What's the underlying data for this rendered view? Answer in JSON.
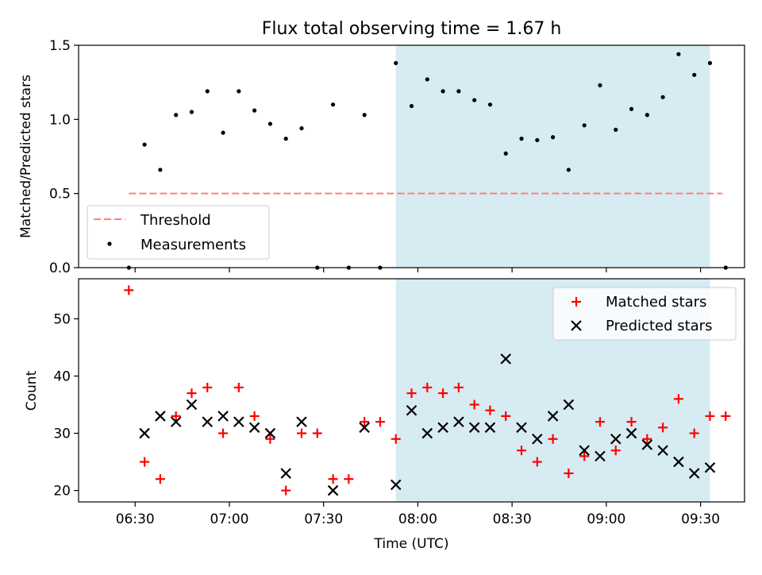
{
  "title": "Flux total observing time = 1.67 h",
  "colors": {
    "threshold": "#ff7f7f",
    "matched": "#ff0000",
    "predicted": "#000000",
    "shade": "#add8e6",
    "measurement": "#000000"
  },
  "x_axis": {
    "label": "Time (UTC)",
    "min_minutes_after_0600": 12,
    "max_minutes_after_0600": 224,
    "ticks": [
      {
        "t": "06:30",
        "label": "06:30"
      },
      {
        "t": "07:00",
        "label": "07:00"
      },
      {
        "t": "07:30",
        "label": "07:30"
      },
      {
        "t": "08:00",
        "label": "08:00"
      },
      {
        "t": "08:30",
        "label": "08:30"
      },
      {
        "t": "09:00",
        "label": "09:00"
      },
      {
        "t": "09:30",
        "label": "09:30"
      }
    ]
  },
  "chart_data": [
    {
      "type": "scatter",
      "title": "Flux total observing time = 1.67 h",
      "ylabel": "Matched/Predicted stars",
      "ylim": [
        0,
        1.5
      ],
      "yticks": [
        {
          "v": 0,
          "label": "0.0"
        },
        {
          "v": 0.5,
          "label": "0.5"
        },
        {
          "v": 1.0,
          "label": "1.0"
        },
        {
          "v": 1.5,
          "label": "1.5"
        }
      ],
      "shaded_span": [
        "07:53",
        "09:33"
      ],
      "threshold": {
        "name": "Threshold",
        "value": 0.5,
        "x_start": "06:28",
        "x_end": "09:37"
      },
      "legend": {
        "location": "lower left",
        "entries": [
          "Threshold",
          "Measurements"
        ]
      },
      "series": [
        {
          "name": "Measurements",
          "points": [
            {
              "x": "06:28",
              "y": 0.0
            },
            {
              "x": "06:33",
              "y": 0.83
            },
            {
              "x": "06:38",
              "y": 0.66
            },
            {
              "x": "06:43",
              "y": 1.03
            },
            {
              "x": "06:48",
              "y": 1.05
            },
            {
              "x": "06:53",
              "y": 1.19
            },
            {
              "x": "06:58",
              "y": 0.91
            },
            {
              "x": "07:03",
              "y": 1.19
            },
            {
              "x": "07:08",
              "y": 1.06
            },
            {
              "x": "07:13",
              "y": 0.97
            },
            {
              "x": "07:18",
              "y": 0.87
            },
            {
              "x": "07:23",
              "y": 0.94
            },
            {
              "x": "07:28",
              "y": 0.0
            },
            {
              "x": "07:33",
              "y": 1.1
            },
            {
              "x": "07:38",
              "y": 0.0
            },
            {
              "x": "07:43",
              "y": 1.03
            },
            {
              "x": "07:48",
              "y": 0.0
            },
            {
              "x": "07:53",
              "y": 1.38
            },
            {
              "x": "07:58",
              "y": 1.09
            },
            {
              "x": "08:03",
              "y": 1.27
            },
            {
              "x": "08:08",
              "y": 1.19
            },
            {
              "x": "08:13",
              "y": 1.19
            },
            {
              "x": "08:18",
              "y": 1.13
            },
            {
              "x": "08:23",
              "y": 1.1
            },
            {
              "x": "08:28",
              "y": 0.77
            },
            {
              "x": "08:33",
              "y": 0.87
            },
            {
              "x": "08:38",
              "y": 0.86
            },
            {
              "x": "08:43",
              "y": 0.88
            },
            {
              "x": "08:48",
              "y": 0.66
            },
            {
              "x": "08:53",
              "y": 0.96
            },
            {
              "x": "08:58",
              "y": 1.23
            },
            {
              "x": "09:03",
              "y": 0.93
            },
            {
              "x": "09:08",
              "y": 1.07
            },
            {
              "x": "09:13",
              "y": 1.03
            },
            {
              "x": "09:18",
              "y": 1.15
            },
            {
              "x": "09:23",
              "y": 1.44
            },
            {
              "x": "09:28",
              "y": 1.3
            },
            {
              "x": "09:33",
              "y": 1.38
            },
            {
              "x": "09:38",
              "y": 0.0
            }
          ]
        }
      ]
    },
    {
      "type": "scatter",
      "xlabel": "Time (UTC)",
      "ylabel": "Count",
      "ylim": [
        18,
        57
      ],
      "yticks": [
        {
          "v": 20,
          "label": "20"
        },
        {
          "v": 30,
          "label": "30"
        },
        {
          "v": 40,
          "label": "40"
        },
        {
          "v": 50,
          "label": "50"
        }
      ],
      "shaded_span": [
        "07:53",
        "09:33"
      ],
      "legend": {
        "location": "upper right",
        "entries": [
          "Matched stars",
          "Predicted stars"
        ]
      },
      "series": [
        {
          "name": "Matched stars",
          "marker": "plus",
          "points": [
            {
              "x": "06:28",
              "y": 55
            },
            {
              "x": "06:33",
              "y": 25
            },
            {
              "x": "06:38",
              "y": 22
            },
            {
              "x": "06:43",
              "y": 33
            },
            {
              "x": "06:48",
              "y": 37
            },
            {
              "x": "06:53",
              "y": 38
            },
            {
              "x": "06:58",
              "y": 30
            },
            {
              "x": "07:03",
              "y": 38
            },
            {
              "x": "07:08",
              "y": 33
            },
            {
              "x": "07:13",
              "y": 29
            },
            {
              "x": "07:18",
              "y": 20
            },
            {
              "x": "07:23",
              "y": 30
            },
            {
              "x": "07:28",
              "y": 30
            },
            {
              "x": "07:33",
              "y": 22
            },
            {
              "x": "07:38",
              "y": 22
            },
            {
              "x": "07:43",
              "y": 32
            },
            {
              "x": "07:48",
              "y": 32
            },
            {
              "x": "07:53",
              "y": 29
            },
            {
              "x": "07:58",
              "y": 37
            },
            {
              "x": "08:03",
              "y": 38
            },
            {
              "x": "08:08",
              "y": 37
            },
            {
              "x": "08:13",
              "y": 38
            },
            {
              "x": "08:18",
              "y": 35
            },
            {
              "x": "08:23",
              "y": 34
            },
            {
              "x": "08:28",
              "y": 33
            },
            {
              "x": "08:33",
              "y": 27
            },
            {
              "x": "08:38",
              "y": 25
            },
            {
              "x": "08:43",
              "y": 29
            },
            {
              "x": "08:48",
              "y": 23
            },
            {
              "x": "08:53",
              "y": 26
            },
            {
              "x": "08:58",
              "y": 32
            },
            {
              "x": "09:03",
              "y": 27
            },
            {
              "x": "09:08",
              "y": 32
            },
            {
              "x": "09:13",
              "y": 29
            },
            {
              "x": "09:18",
              "y": 31
            },
            {
              "x": "09:23",
              "y": 36
            },
            {
              "x": "09:28",
              "y": 30
            },
            {
              "x": "09:33",
              "y": 33
            },
            {
              "x": "09:38",
              "y": 33
            }
          ]
        },
        {
          "name": "Predicted stars",
          "marker": "x",
          "points": [
            {
              "x": "06:33",
              "y": 30
            },
            {
              "x": "06:38",
              "y": 33
            },
            {
              "x": "06:43",
              "y": 32
            },
            {
              "x": "06:48",
              "y": 35
            },
            {
              "x": "06:53",
              "y": 32
            },
            {
              "x": "06:58",
              "y": 33
            },
            {
              "x": "07:03",
              "y": 32
            },
            {
              "x": "07:08",
              "y": 31
            },
            {
              "x": "07:13",
              "y": 30
            },
            {
              "x": "07:18",
              "y": 23
            },
            {
              "x": "07:23",
              "y": 32
            },
            {
              "x": "07:33",
              "y": 20
            },
            {
              "x": "07:43",
              "y": 31
            },
            {
              "x": "07:53",
              "y": 21
            },
            {
              "x": "07:58",
              "y": 34
            },
            {
              "x": "08:03",
              "y": 30
            },
            {
              "x": "08:08",
              "y": 31
            },
            {
              "x": "08:13",
              "y": 32
            },
            {
              "x": "08:18",
              "y": 31
            },
            {
              "x": "08:23",
              "y": 31
            },
            {
              "x": "08:28",
              "y": 43
            },
            {
              "x": "08:33",
              "y": 31
            },
            {
              "x": "08:38",
              "y": 29
            },
            {
              "x": "08:43",
              "y": 33
            },
            {
              "x": "08:48",
              "y": 35
            },
            {
              "x": "08:53",
              "y": 27
            },
            {
              "x": "08:58",
              "y": 26
            },
            {
              "x": "09:03",
              "y": 29
            },
            {
              "x": "09:08",
              "y": 30
            },
            {
              "x": "09:13",
              "y": 28
            },
            {
              "x": "09:18",
              "y": 27
            },
            {
              "x": "09:23",
              "y": 25
            },
            {
              "x": "09:28",
              "y": 23
            },
            {
              "x": "09:33",
              "y": 24
            }
          ]
        }
      ]
    }
  ]
}
